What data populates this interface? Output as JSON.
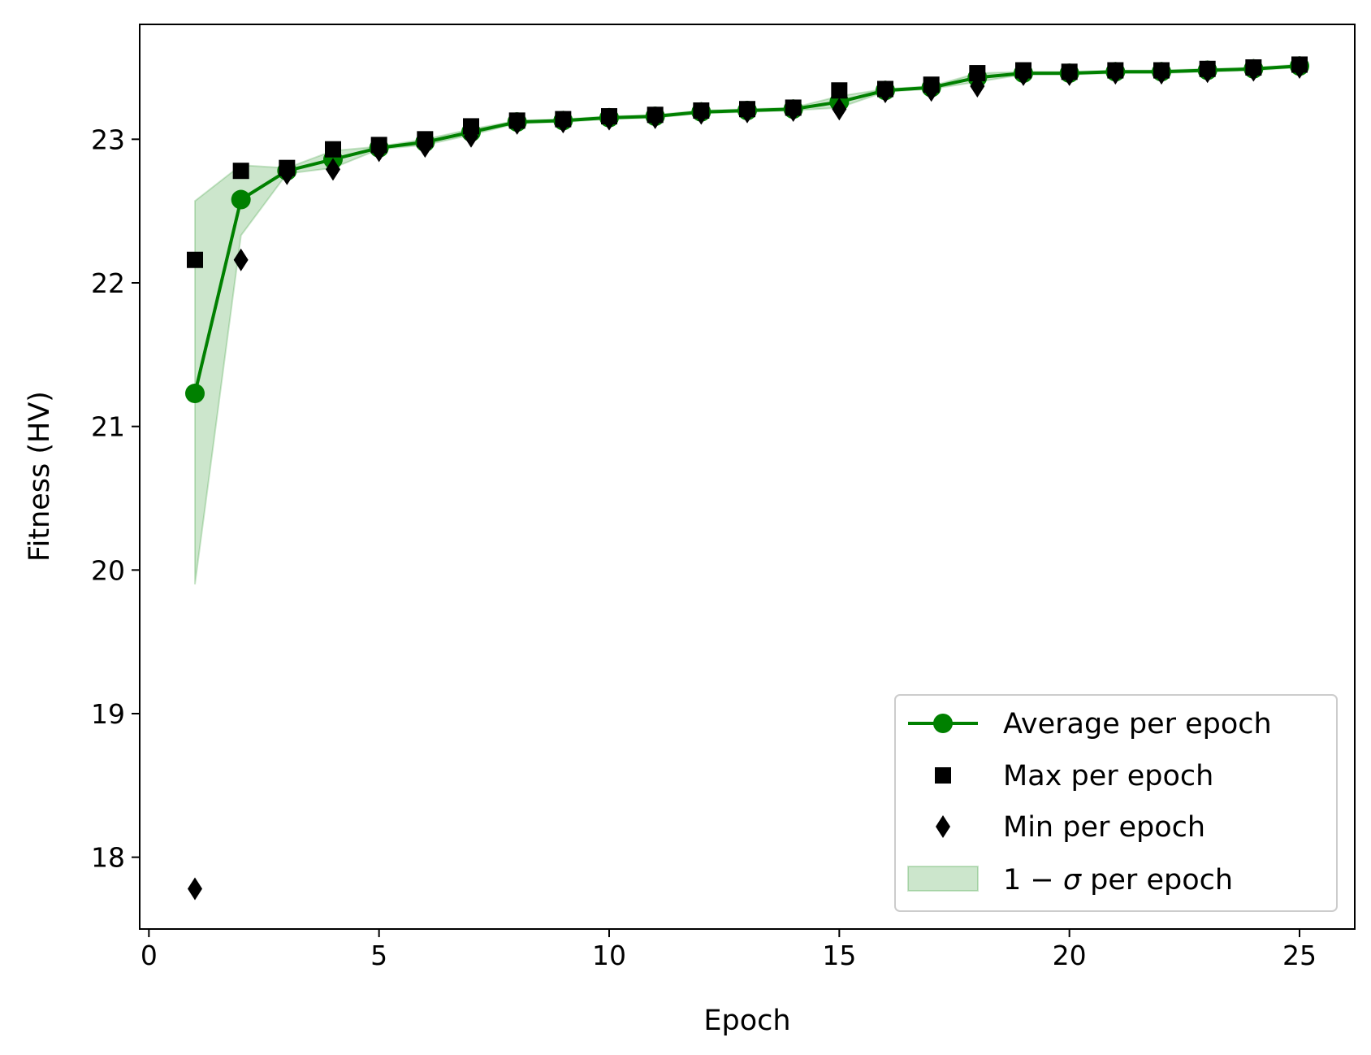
{
  "chart_data": {
    "type": "line",
    "title": "",
    "xlabel": "Epoch",
    "ylabel": "Fitness (HV)",
    "xlim": [
      -0.2,
      26.2
    ],
    "ylim": [
      17.5,
      23.8
    ],
    "xticks": [
      0,
      5,
      10,
      15,
      20,
      25
    ],
    "yticks": [
      18,
      19,
      20,
      21,
      22,
      23
    ],
    "grid": false,
    "legend_position": "lower-right",
    "x": [
      1,
      2,
      3,
      4,
      5,
      6,
      7,
      8,
      9,
      10,
      11,
      12,
      13,
      14,
      15,
      16,
      17,
      18,
      19,
      20,
      21,
      22,
      23,
      24,
      25
    ],
    "series": [
      {
        "name": "Average per epoch",
        "marker": "circle",
        "color": "#008000",
        "values": [
          21.23,
          22.58,
          22.78,
          22.86,
          22.94,
          22.98,
          23.05,
          23.12,
          23.13,
          23.15,
          23.16,
          23.19,
          23.2,
          23.21,
          23.26,
          23.34,
          23.36,
          23.43,
          23.46,
          23.46,
          23.47,
          23.47,
          23.48,
          23.49,
          23.51
        ]
      },
      {
        "name": "Max per epoch",
        "marker": "square",
        "color": "#000000",
        "values": [
          22.16,
          22.78,
          22.8,
          22.93,
          22.96,
          23.0,
          23.09,
          23.13,
          23.14,
          23.16,
          23.17,
          23.2,
          23.21,
          23.22,
          23.34,
          23.35,
          23.38,
          23.46,
          23.48,
          23.47,
          23.48,
          23.48,
          23.49,
          23.5,
          23.52
        ]
      },
      {
        "name": "Min per epoch",
        "marker": "thin_diamond",
        "color": "#000000",
        "values": [
          17.78,
          22.16,
          22.76,
          22.79,
          22.92,
          22.95,
          23.02,
          23.11,
          23.12,
          23.14,
          23.15,
          23.18,
          23.19,
          23.2,
          23.21,
          23.33,
          23.34,
          23.37,
          23.45,
          23.45,
          23.46,
          23.46,
          23.47,
          23.48,
          23.5
        ]
      }
    ],
    "band": {
      "name": "1 − σ per epoch",
      "color": "#008000",
      "opacity": 0.2,
      "lower": [
        19.9,
        22.33,
        22.76,
        22.8,
        22.93,
        22.96,
        23.03,
        23.11,
        23.12,
        23.14,
        23.15,
        23.18,
        23.19,
        23.2,
        23.22,
        23.33,
        23.35,
        23.4,
        23.45,
        23.45,
        23.46,
        23.46,
        23.47,
        23.48,
        23.5
      ],
      "upper": [
        22.57,
        22.82,
        22.8,
        22.92,
        22.95,
        23.0,
        23.07,
        23.13,
        23.14,
        23.16,
        23.17,
        23.2,
        23.21,
        23.22,
        23.3,
        23.35,
        23.37,
        23.46,
        23.47,
        23.47,
        23.48,
        23.48,
        23.49,
        23.5,
        23.52
      ]
    },
    "legend": {
      "average_label": "Average per epoch",
      "max_label": "Max per epoch",
      "min_label": "Min per epoch",
      "band_label_prefix": "1 − ",
      "band_label_sigma": "σ",
      "band_label_suffix": " per epoch"
    }
  }
}
